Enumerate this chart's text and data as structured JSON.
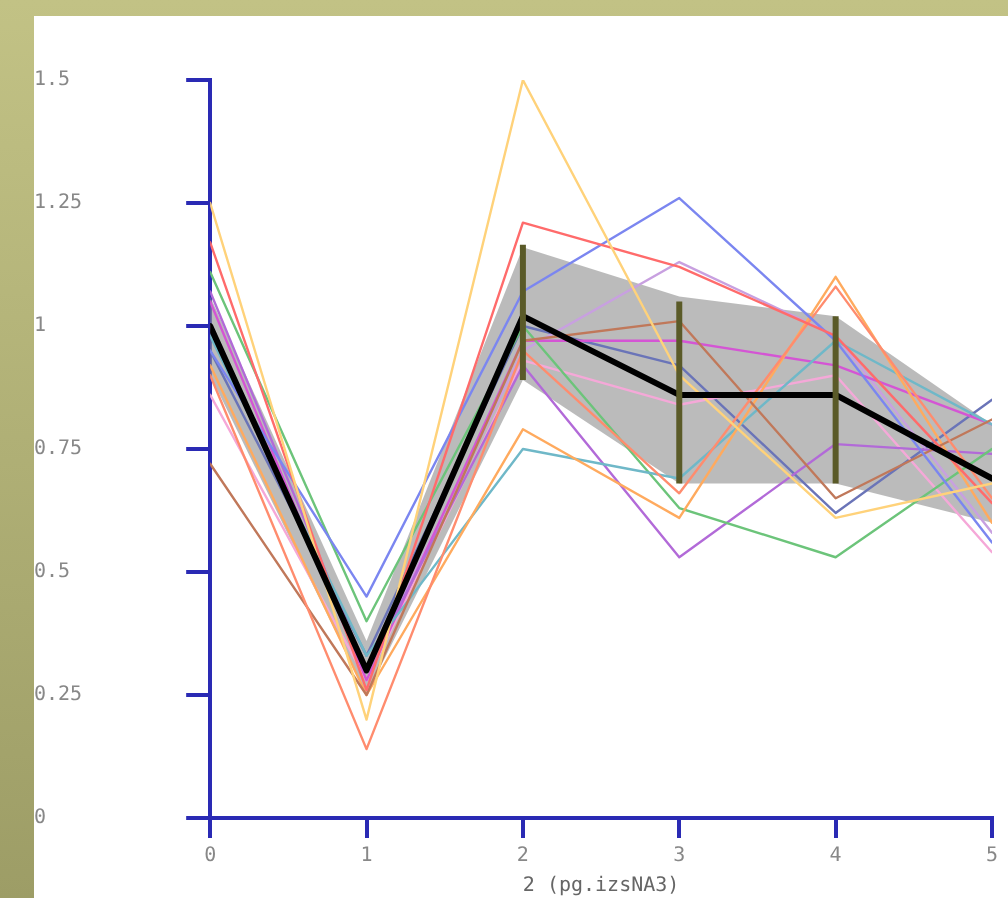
{
  "chart_data": {
    "type": "line",
    "xlabel": "2 (pg.izsNA3)",
    "x": [
      0,
      1,
      2,
      3,
      4,
      5
    ],
    "xlim": [
      0,
      5
    ],
    "xticks": [
      0,
      1,
      2,
      3,
      4,
      5
    ],
    "ylim": [
      0,
      1.5
    ],
    "yticks": [
      0,
      0.25,
      0.5,
      0.75,
      1,
      1.25,
      1.5
    ],
    "grid": false,
    "legend": false,
    "marker": "none",
    "line_style": "solid",
    "series": [
      {
        "color": "#ffd27a",
        "values": [
          1.25,
          0.2,
          1.5,
          0.9,
          0.61,
          0.68
        ]
      },
      {
        "color": "#ff6b6b",
        "values": [
          1.17,
          0.26,
          1.21,
          1.12,
          0.98,
          0.64
        ]
      },
      {
        "color": "#7b86f0",
        "values": [
          0.95,
          0.45,
          1.07,
          1.26,
          0.97,
          0.56
        ]
      },
      {
        "color": "#ff8c6e",
        "values": [
          0.9,
          0.14,
          0.95,
          0.66,
          1.08,
          0.65
        ]
      },
      {
        "color": "#c0785a",
        "values": [
          0.72,
          0.25,
          0.97,
          1.01,
          0.65,
          0.81
        ]
      },
      {
        "color": "#ffaa5e",
        "values": [
          0.92,
          0.25,
          0.79,
          0.61,
          1.1,
          0.6
        ]
      },
      {
        "color": "#6fb8c8",
        "values": [
          0.98,
          0.33,
          0.75,
          0.69,
          0.97,
          0.8
        ]
      },
      {
        "color": "#6cc47a",
        "values": [
          1.11,
          0.4,
          1.0,
          0.63,
          0.53,
          0.75
        ]
      },
      {
        "color": "#b26ad8",
        "values": [
          1.07,
          0.3,
          0.92,
          0.53,
          0.76,
          0.74
        ]
      },
      {
        "color": "#d455d4",
        "values": [
          1.05,
          0.28,
          0.97,
          0.97,
          0.92,
          0.8
        ]
      },
      {
        "color": "#c8a0e0",
        "values": [
          1.0,
          0.3,
          0.95,
          1.13,
          0.98,
          0.58
        ]
      },
      {
        "color": "#f5a8d8",
        "values": [
          0.86,
          0.28,
          0.93,
          0.84,
          0.9,
          0.54
        ]
      },
      {
        "color": "#6a74b8",
        "values": [
          0.95,
          0.33,
          1.0,
          0.92,
          0.62,
          0.85
        ]
      },
      {
        "color": "#000000",
        "values": [
          1.0,
          0.3,
          1.02,
          0.86,
          0.86,
          0.69
        ],
        "lower": [
          0.9,
          0.25,
          0.89,
          0.68,
          0.68,
          0.6
        ],
        "upper": [
          1.06,
          0.36,
          1.16,
          1.06,
          1.02,
          0.8
        ],
        "errors": [
          null,
          null,
          [
            0.89,
            1.165
          ],
          [
            0.68,
            1.05
          ],
          [
            0.68,
            1.02
          ],
          null
        ]
      }
    ]
  }
}
